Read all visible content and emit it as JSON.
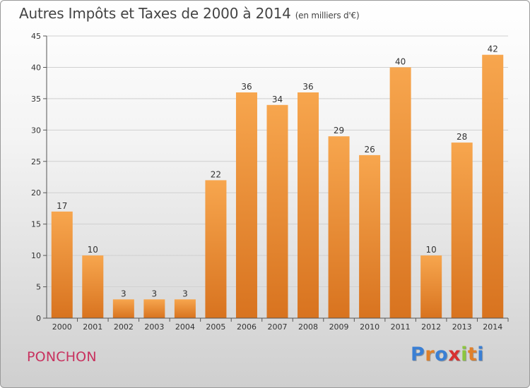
{
  "title": "Autres Impôts et Taxes de 2000 à 2014",
  "title_unit": "(en milliers d'€)",
  "commune": "PONCHON",
  "logo": {
    "text": "Proxiti",
    "letters": [
      {
        "char": "P",
        "color": "#3a7fd4"
      },
      {
        "char": "r",
        "color": "#e0802a"
      },
      {
        "char": "o",
        "color": "#3a7fd4"
      },
      {
        "char": "x",
        "color": "#d83030"
      },
      {
        "char": "i",
        "color": "#8cc63e"
      },
      {
        "char": "t",
        "color": "#e0802a"
      },
      {
        "char": "i",
        "color": "#3a7fd4"
      }
    ]
  },
  "chart_data": {
    "type": "bar",
    "title": "Autres Impôts et Taxes de 2000 à 2014",
    "ylabel": "",
    "xlabel": "",
    "categories": [
      "2000",
      "2001",
      "2002",
      "2003",
      "2004",
      "2005",
      "2006",
      "2007",
      "2008",
      "2009",
      "2010",
      "2011",
      "2012",
      "2013",
      "2014"
    ],
    "values": [
      17,
      10,
      3,
      3,
      3,
      22,
      36,
      34,
      36,
      29,
      26,
      40,
      10,
      28,
      42
    ],
    "ylim": [
      0,
      45
    ],
    "yticks": [
      0,
      5,
      10,
      15,
      20,
      25,
      30,
      35,
      40,
      45
    ],
    "grid": true,
    "bar_color_top": "#f7a64e",
    "bar_color_bottom": "#d8731f"
  }
}
